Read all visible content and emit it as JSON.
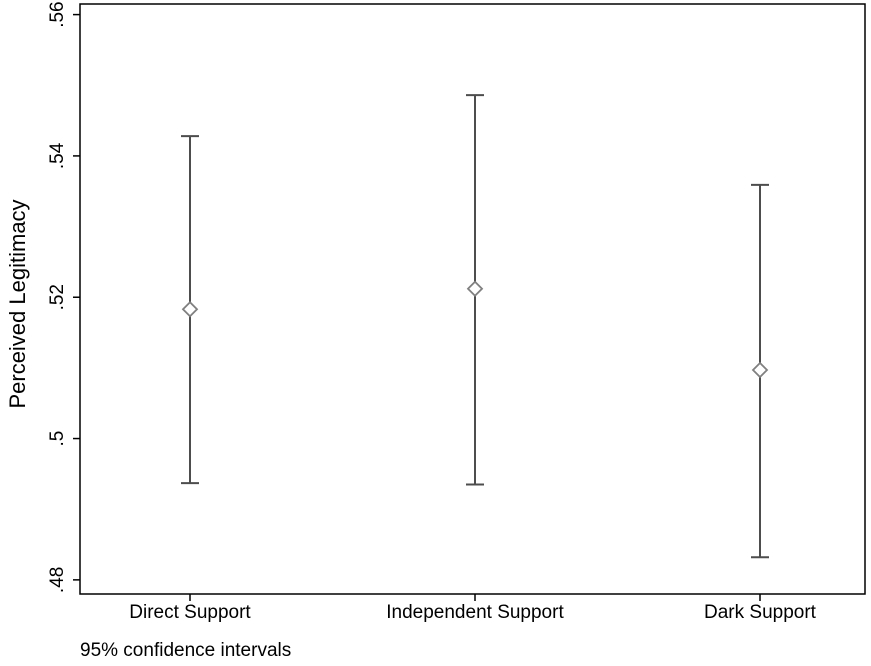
{
  "chart_data": {
    "type": "scatter",
    "subtype": "point-estimate-with-confidence-intervals",
    "categories": [
      "Direct Support",
      "Independent Support",
      "Dark Support"
    ],
    "series": [
      {
        "estimates": [
          0.5183,
          0.5212,
          0.5097
        ],
        "ci_lower": [
          0.4937,
          0.4935,
          0.4832
        ],
        "ci_upper": [
          0.5428,
          0.5486,
          0.5359
        ]
      }
    ],
    "ylabel": "Perceived Legitimacy",
    "xlabel": "",
    "ylim": [
      0.478,
      0.5615
    ],
    "yticks": [
      0.48,
      0.5,
      0.52,
      0.54,
      0.56
    ],
    "ytick_labels": [
      ".48",
      ".5",
      ".52",
      ".54",
      ".56"
    ],
    "marker": "hollow-diamond",
    "grid": false,
    "colors": {
      "marker": "#808080",
      "errorbar": "#4d4d4d",
      "frame": "#000000"
    }
  },
  "note": "95% confidence intervals"
}
